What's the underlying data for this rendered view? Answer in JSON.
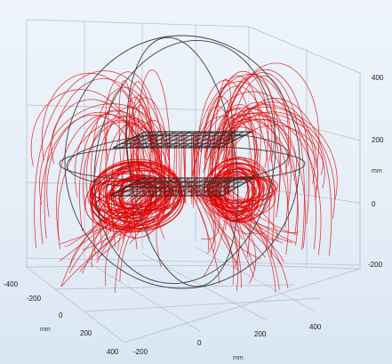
{
  "view": {
    "unit_label": "mm"
  },
  "axes": {
    "x_ticks": [
      "-400",
      "-200",
      "0",
      "200",
      "400"
    ],
    "y_ticks": [
      "-200",
      "0",
      "200",
      "400"
    ],
    "z_ticks": [
      "-200",
      "0",
      "200",
      "400"
    ],
    "x_unit": "mm",
    "y_unit": "mm",
    "z_unit": "mm"
  },
  "colors": {
    "field_lines": "#e00000",
    "wireframe": "#3b3f45",
    "grid": "#b4bcc6",
    "background_top": "#eef4fa",
    "background_bottom": "#d9e6f3"
  }
}
